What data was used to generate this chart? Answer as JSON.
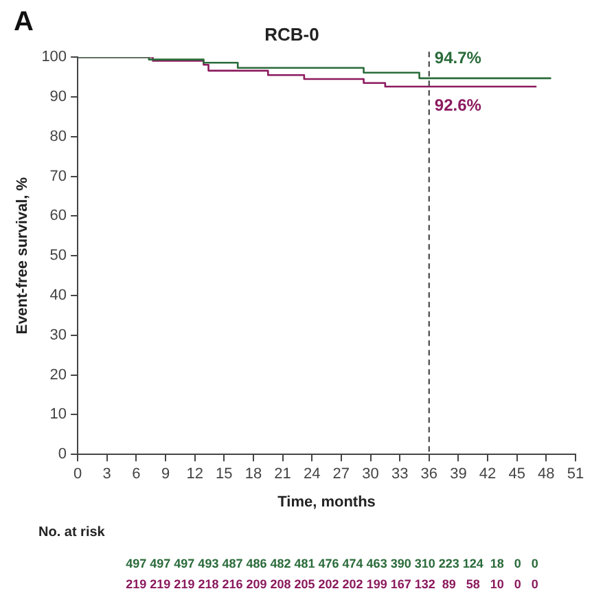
{
  "chart_data": {
    "type": "step",
    "title": "RCB-0",
    "xlabel": "Time, months",
    "ylabel": "Event-free survival, %",
    "xlim": [
      0,
      51
    ],
    "xticks": [
      0,
      3,
      6,
      9,
      12,
      15,
      18,
      21,
      24,
      27,
      30,
      33,
      36,
      39,
      42,
      45,
      48,
      51
    ],
    "ylim": [
      0,
      100
    ],
    "yticks": [
      0,
      10,
      20,
      30,
      40,
      50,
      60,
      70,
      80,
      90,
      100
    ],
    "series": [
      {
        "color": "#2a6b3a",
        "x": [
          0,
          7.3,
          12.9,
          16.4,
          29.3,
          35,
          48.5
        ],
        "values": [
          100,
          99.4,
          98.6,
          97.3,
          96.1,
          94.7,
          94.7
        ]
      },
      {
        "color": "#8b1a5e",
        "x": [
          0,
          7.7,
          12.9,
          13.4,
          19.5,
          23.2,
          29.3,
          31.5,
          47
        ],
        "values": [
          100,
          99.1,
          98.1,
          96.6,
          95.5,
          94.5,
          93.5,
          92.6,
          92.6
        ]
      }
    ],
    "ref_lines": [
      {
        "axis": "x",
        "value": 36,
        "color": "#555555",
        "line_style": "dashed"
      }
    ],
    "annotations": [
      {
        "text": "94.7%",
        "x": 36,
        "y": 94.7
      },
      {
        "text": "92.6%",
        "x": 36,
        "y": 92.6
      },
      "A",
      "No. at risk",
      "497 497 497 493 487 486 482 481 476 474 463 390 310 223 124  18   0   0",
      "219 219 219 218 216 209 208 205 202 202 199 167 132  89   58   10   0   0"
    ],
    "grid": false,
    "legend": false,
    "marker": "none",
    "line_style": "solid"
  }
}
